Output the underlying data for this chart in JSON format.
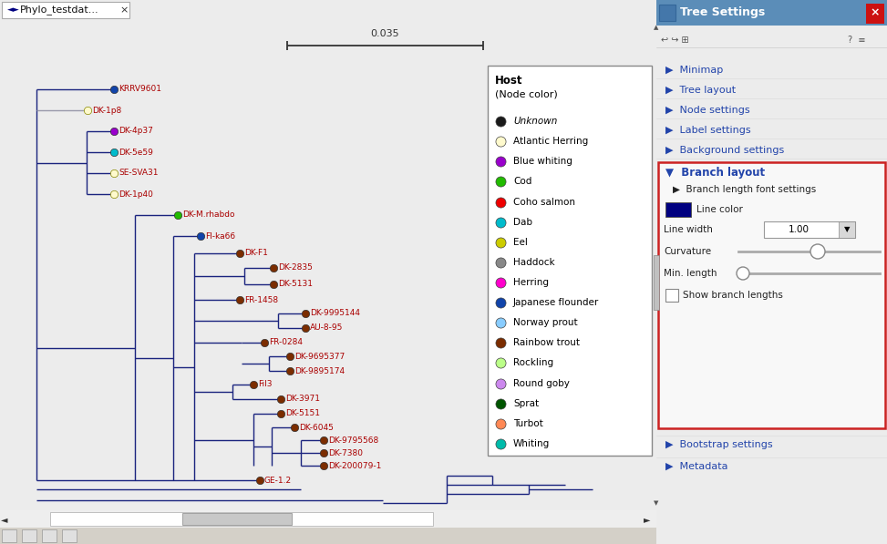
{
  "title_tab": "Phylo_testdat...",
  "tree_settings_title": "Tree Settings",
  "scale_bar_value": "0.035",
  "legend_items": [
    {
      "label": "Unknown",
      "color": "#1a1a1a",
      "italic": true
    },
    {
      "label": "Atlantic Herring",
      "color": "#FFFACD"
    },
    {
      "label": "Blue whiting",
      "color": "#9900CC"
    },
    {
      "label": "Cod",
      "color": "#22BB00"
    },
    {
      "label": "Coho salmon",
      "color": "#EE0000"
    },
    {
      "label": "Dab",
      "color": "#00BBCC"
    },
    {
      "label": "Eel",
      "color": "#CCCC00"
    },
    {
      "label": "Haddock",
      "color": "#888888"
    },
    {
      "label": "Herring",
      "color": "#FF00CC"
    },
    {
      "label": "Japanese flounder",
      "color": "#1144AA"
    },
    {
      "label": "Norway prout",
      "color": "#88CCFF"
    },
    {
      "label": "Rainbow trout",
      "color": "#7B2D00"
    },
    {
      "label": "Rockling",
      "color": "#BBFF88"
    },
    {
      "label": "Round goby",
      "color": "#CC88EE"
    },
    {
      "label": "Sprat",
      "color": "#005500"
    },
    {
      "label": "Turbot",
      "color": "#FF8855"
    },
    {
      "label": "Whiting",
      "color": "#00BBAA"
    }
  ],
  "tree_bg": "#FFFFFF",
  "branch_color": "#1a237e",
  "branch_color_gray": "#9999AA",
  "label_color": "#AA0000",
  "fig_bg": "#ECECEC",
  "right_panel_bg": "#F0F0F0",
  "node_colors": {
    "KRRV9601": "#1144AA",
    "DK-1p8": "#FFFACD",
    "DK-4p37": "#9900CC",
    "DK-5e59": "#00BBCC",
    "SE-SVA31": "#FFFACD",
    "DK-1p40": "#FFFACD",
    "DK-M.rhabdo": "#22BB00",
    "FI-ka66": "#1144AA",
    "DK-F1": "#7B2D00",
    "DK-2835": "#7B2D00",
    "DK-5131": "#7B2D00",
    "FR-1458": "#7B2D00",
    "DK-9995144": "#7B2D00",
    "AU-8-95": "#7B2D00",
    "FR-0284": "#7B2D00",
    "DK-9695377": "#7B2D00",
    "DK-9895174": "#7B2D00",
    "Fil3": "#7B2D00",
    "DK-3971": "#7B2D00",
    "DK-5151": "#7B2D00",
    "DK-6045": "#7B2D00",
    "DK-9795568": "#7B2D00",
    "DK-7380": "#7B2D00",
    "DK-200079-1": "#7B2D00",
    "GE-1.2": "#7B2D00"
  }
}
